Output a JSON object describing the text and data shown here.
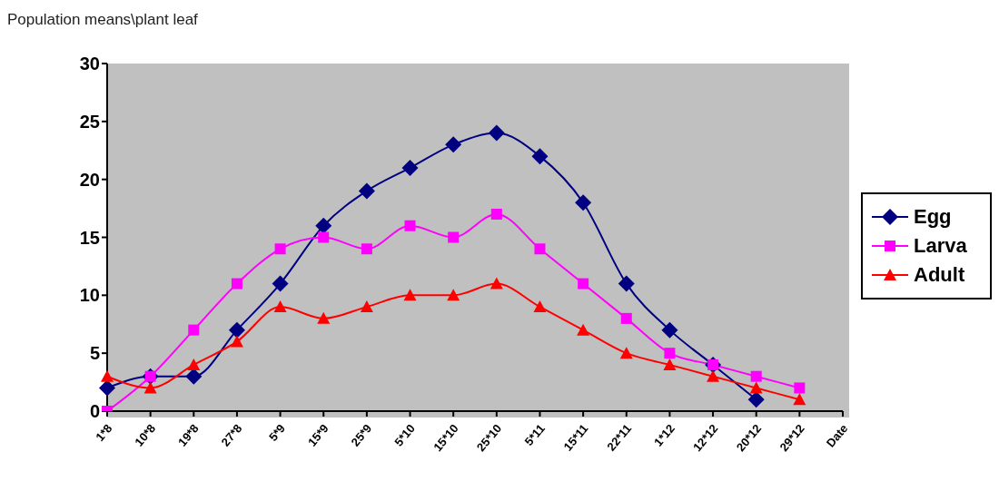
{
  "chart_data": {
    "type": "line",
    "ylabel": "Population means\\plant leaf",
    "categories": [
      "1*8",
      "10*8",
      "19*8",
      "27*8",
      "5*9",
      "15*9",
      "25*9",
      "5*10",
      "15*10",
      "25*10",
      "5*11",
      "15*11",
      "22*11",
      "1*12",
      "12*12",
      "20*12",
      "29*12",
      "Date"
    ],
    "series": [
      {
        "name": "Egg",
        "color": "#000080",
        "marker": "diamond",
        "values": [
          2,
          3,
          3,
          7,
          11,
          16,
          19,
          21,
          23,
          24,
          22,
          18,
          11,
          7,
          4,
          1,
          null,
          null
        ]
      },
      {
        "name": "Larva",
        "color": "#ff00ff",
        "marker": "square",
        "values": [
          0,
          3,
          7,
          11,
          14,
          15,
          14,
          16,
          15,
          17,
          14,
          11,
          8,
          5,
          4,
          3,
          2,
          null
        ]
      },
      {
        "name": "Adult",
        "color": "#ff0000",
        "marker": "triangle",
        "values": [
          3,
          2,
          4,
          6,
          9,
          8,
          9,
          10,
          10,
          11,
          9,
          7,
          5,
          4,
          3,
          2,
          1,
          null
        ]
      }
    ],
    "ylim": [
      0,
      30
    ],
    "yticks": [
      0,
      5,
      10,
      15,
      20,
      25,
      30
    ],
    "grid": false,
    "legend": "right",
    "line_style": "solid"
  }
}
